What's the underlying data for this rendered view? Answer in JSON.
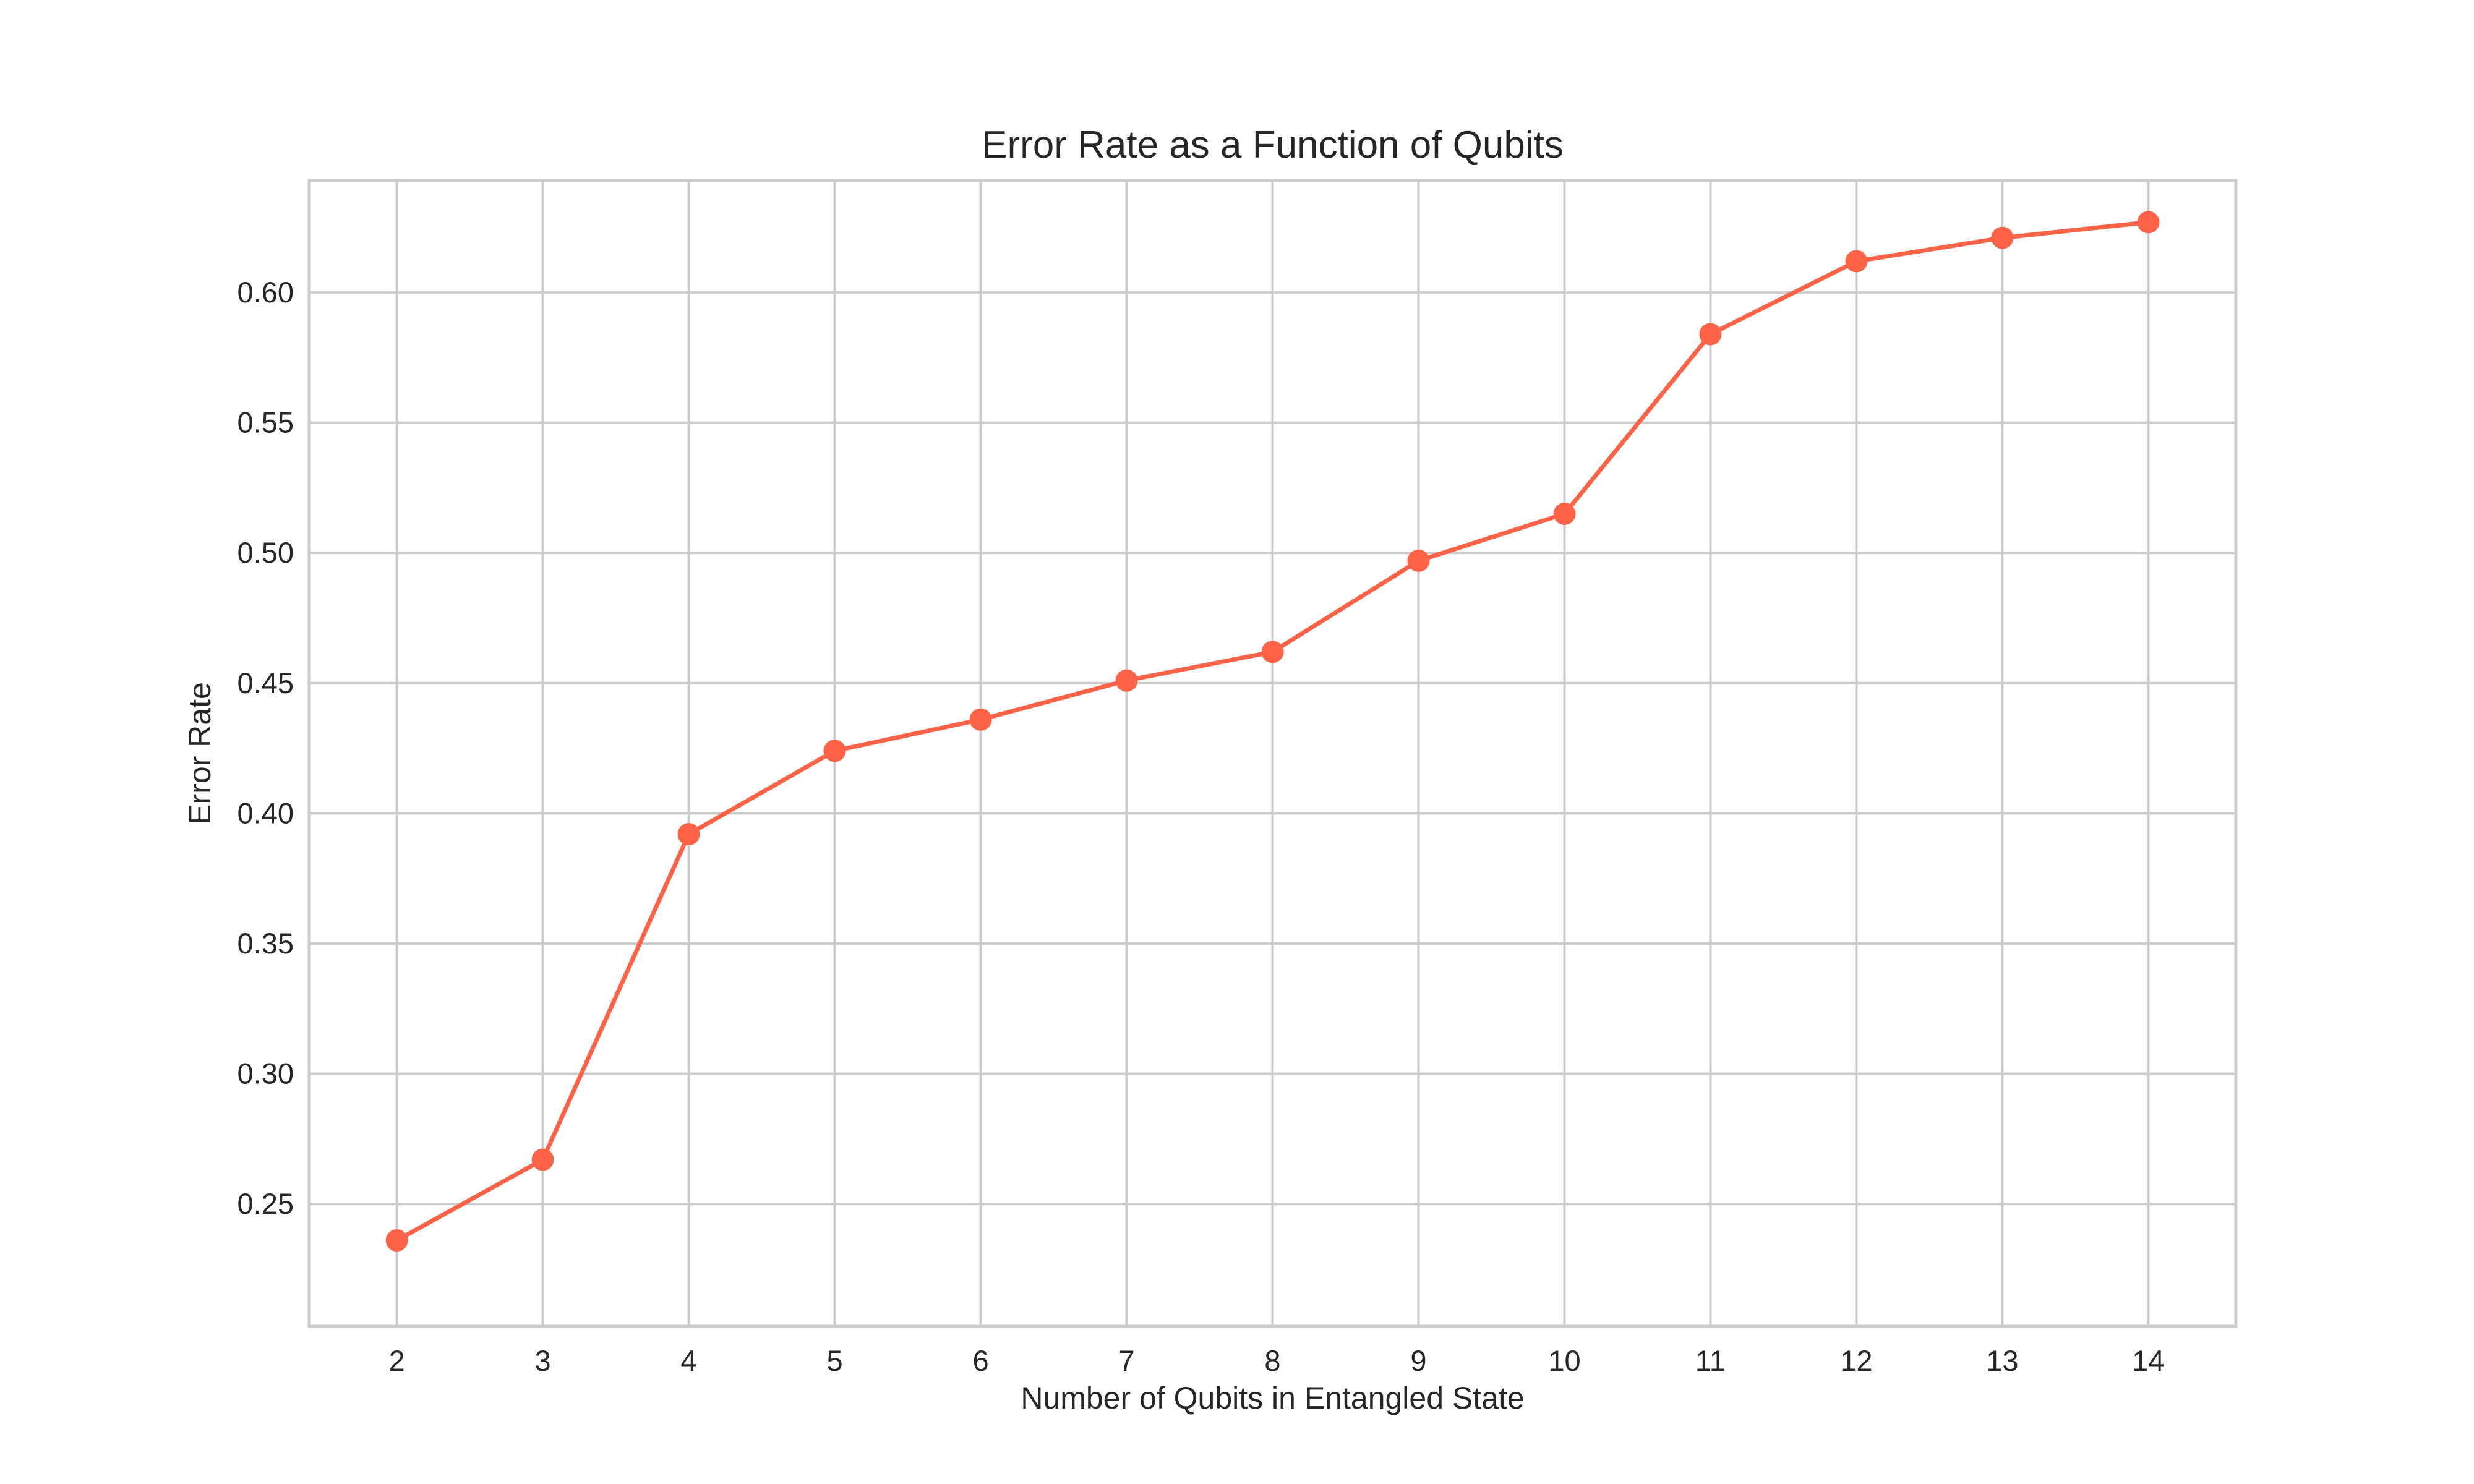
{
  "chart_data": {
    "type": "line",
    "title": "Error Rate as a Function of Qubits",
    "xlabel": "Number of Qubits in Entangled State",
    "ylabel": "Error Rate",
    "x": [
      2,
      3,
      4,
      5,
      6,
      7,
      8,
      9,
      10,
      11,
      12,
      13,
      14
    ],
    "series": [
      {
        "values": [
          0.236,
          0.267,
          0.392,
          0.424,
          0.436,
          0.451,
          0.462,
          0.497,
          0.515,
          0.584,
          0.612,
          0.621,
          0.627
        ]
      }
    ],
    "xlim": [
      1.4,
      14.6
    ],
    "ylim": [
      0.203,
      0.643
    ],
    "x_ticks": [
      "2",
      "3",
      "4",
      "5",
      "6",
      "7",
      "8",
      "9",
      "10",
      "11",
      "12",
      "13",
      "14"
    ],
    "y_ticks": [
      "0.25",
      "0.30",
      "0.35",
      "0.40",
      "0.45",
      "0.50",
      "0.55",
      "0.60"
    ],
    "grid": true,
    "legend": "none",
    "colors": {
      "line": "#ff6347",
      "grid": "#cccccc",
      "axes": "#cccccc",
      "text": "#262626"
    }
  }
}
